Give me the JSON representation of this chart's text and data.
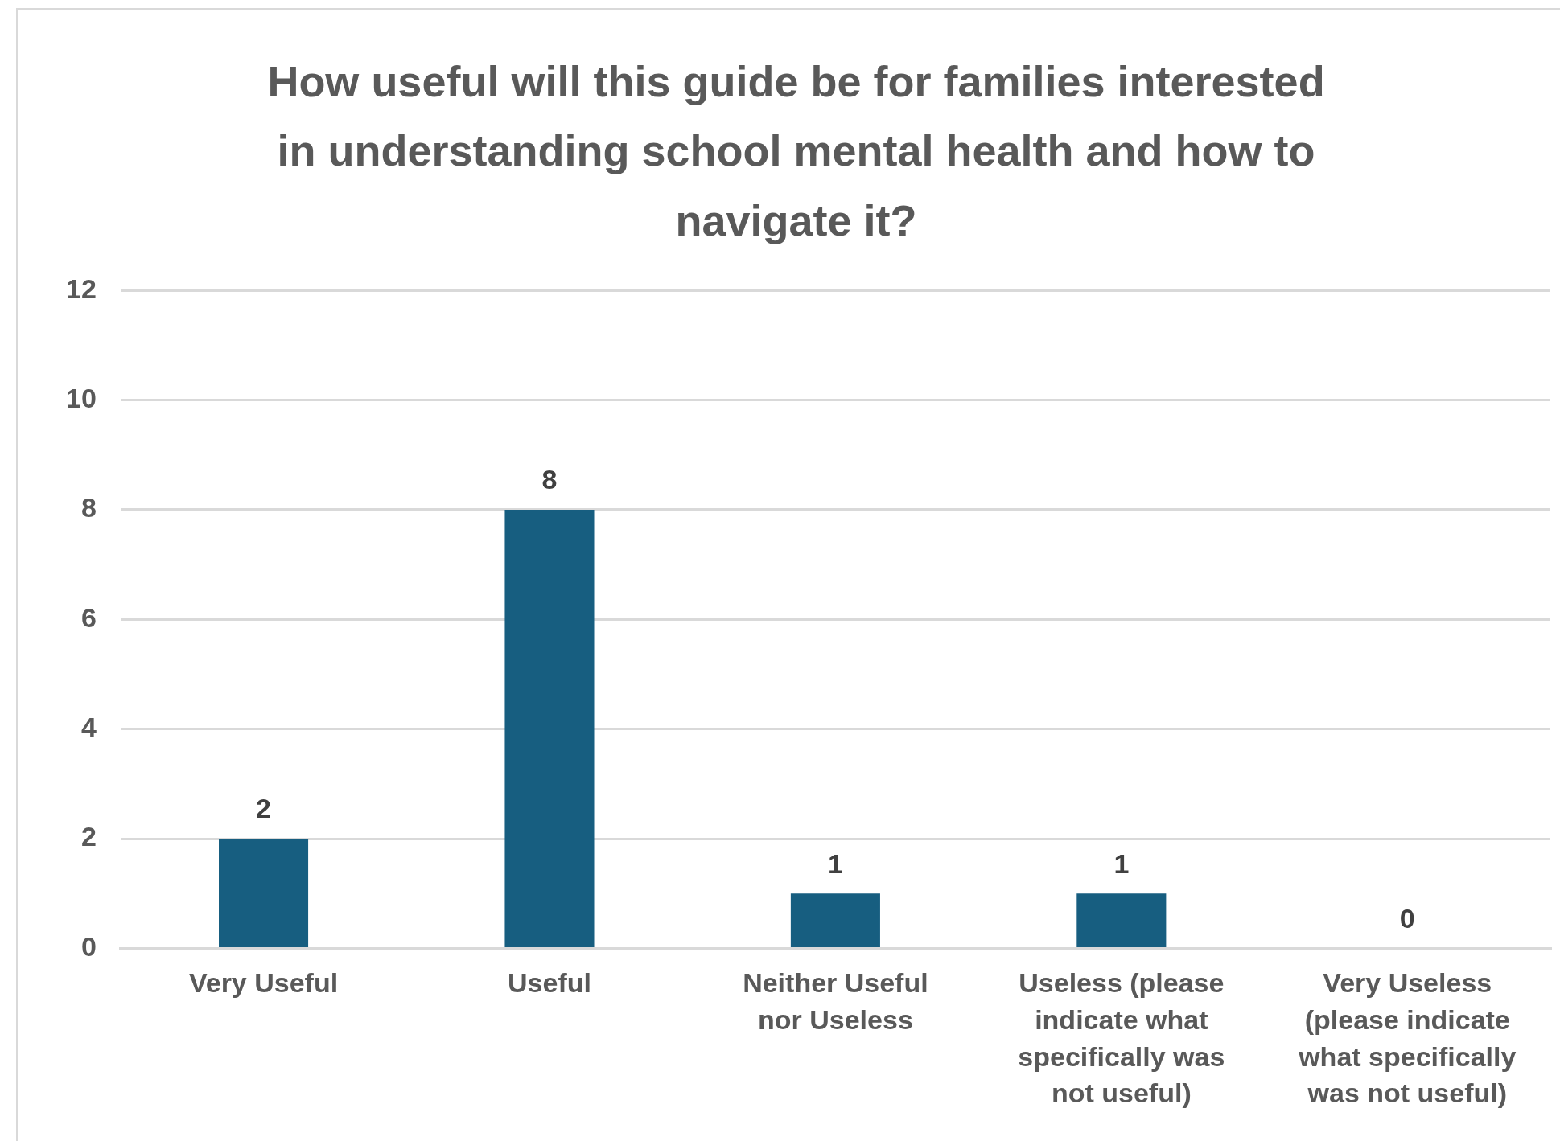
{
  "chart_data": {
    "type": "bar",
    "title": "How useful will this guide be for families interested in understanding school mental health and how to navigate it?",
    "categories": [
      "Very Useful",
      "Useful",
      "Neither Useful nor Useless",
      "Useless (please indicate what specifically was not useful)",
      "Very Useless (please indicate what specifically was not useful)"
    ],
    "values": [
      2,
      8,
      1,
      1,
      0
    ],
    "color": "#175e80",
    "ylim": [
      0,
      12
    ],
    "yticks": [
      0,
      2,
      4,
      6,
      8,
      10,
      12
    ],
    "grid": "y",
    "data_labels": true,
    "legend": false
  }
}
